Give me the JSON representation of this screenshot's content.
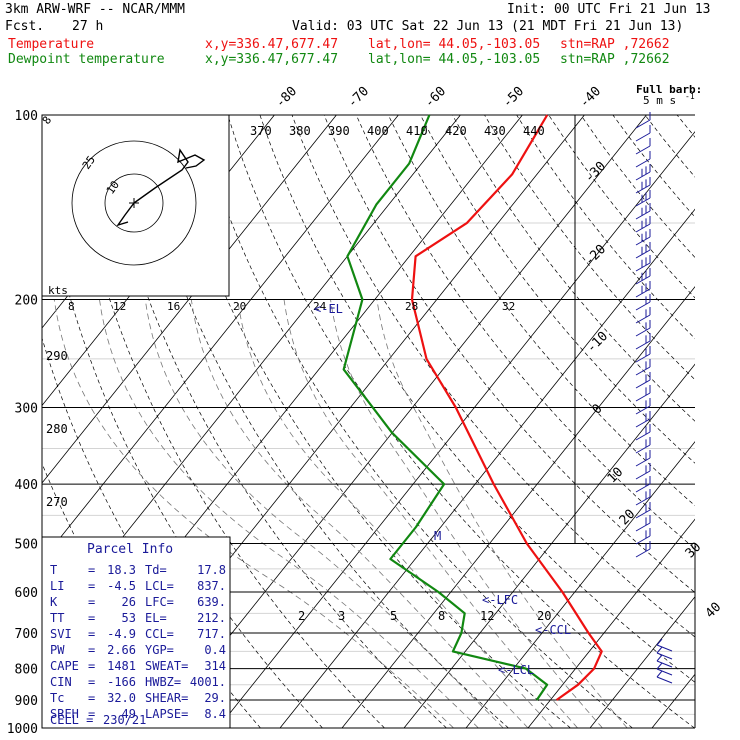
{
  "header": {
    "model": "3km ARW-WRF -- NCAR/MMM",
    "init": "Init: 00 UTC Fri 21 Jun 13",
    "fcst_label": "Fcst.",
    "fcst_value": "27 h",
    "valid": "Valid: 03 UTC Sat 22 Jun 13 (21 MDT Fri 21 Jun 13)",
    "temp_name": "Temperature",
    "dew_name": "Dewpoint temperature",
    "xy": "x,y=336.47,677.47",
    "latlon": "lat,lon= 44.05,-103.05",
    "stn": "stn=RAP ,72662"
  },
  "colors": {
    "temperature": "#ee1111",
    "dewpoint": "#118811",
    "text_blue": "#1a1a99",
    "grid": "#000000"
  },
  "barb_key": {
    "title": "Full barb:",
    "value": "5 m s",
    "exponent": "-1"
  },
  "chart_data": {
    "type": "line",
    "title": "",
    "xlabel": "",
    "ylabel": "",
    "pressure_ticks": [
      "100",
      "200",
      "300",
      "400",
      "500",
      "600",
      "700",
      "800",
      "900",
      "1000"
    ],
    "isotherm_labels_top": [
      "-80",
      "-70",
      "-60",
      "-50",
      "-40"
    ],
    "isotherm_labels_right": [
      "-30",
      "-20",
      "-10",
      "0",
      "10",
      "20",
      "30",
      "40"
    ],
    "theta_labels": [
      "370",
      "380",
      "390",
      "400",
      "410",
      "420",
      "430",
      "440"
    ],
    "theta_e_labels": [
      "290",
      "280",
      "270"
    ],
    "mixing_ratio_labels": [
      "2",
      "3",
      "5",
      "8",
      "12",
      "20"
    ],
    "hodograph": {
      "rings": [
        "10",
        "25"
      ],
      "axis_ticks": [
        "8",
        "12",
        "16",
        "20",
        "24",
        "28",
        "32"
      ],
      "unit": "kts"
    },
    "markers": [
      "EL",
      "M",
      "LFC",
      "CCL",
      "LCL"
    ],
    "temperature_profile": [
      {
        "p": 900,
        "t": 21
      },
      {
        "p": 850,
        "t": 22.5
      },
      {
        "p": 800,
        "t": 23
      },
      {
        "p": 750,
        "t": 22
      },
      {
        "p": 700,
        "t": 17.5
      },
      {
        "p": 600,
        "t": 8
      },
      {
        "p": 500,
        "t": -4
      },
      {
        "p": 400,
        "t": -17
      },
      {
        "p": 300,
        "t": -33
      },
      {
        "p": 250,
        "t": -44
      },
      {
        "p": 200,
        "t": -54
      },
      {
        "p": 170,
        "t": -59
      },
      {
        "p": 150,
        "t": -55
      },
      {
        "p": 125,
        "t": -54
      },
      {
        "p": 100,
        "t": -56
      }
    ],
    "dewpoint_profile": [
      {
        "p": 900,
        "t": 17.8
      },
      {
        "p": 850,
        "t": 17.5
      },
      {
        "p": 800,
        "t": 12
      },
      {
        "p": 750,
        "t": -2
      },
      {
        "p": 700,
        "t": -3
      },
      {
        "p": 650,
        "t": -5
      },
      {
        "p": 600,
        "t": -12
      },
      {
        "p": 530,
        "t": -24
      },
      {
        "p": 470,
        "t": -24
      },
      {
        "p": 400,
        "t": -25
      },
      {
        "p": 330,
        "t": -40
      },
      {
        "p": 260,
        "t": -56
      },
      {
        "p": 200,
        "t": -62
      },
      {
        "p": 170,
        "t": -70
      },
      {
        "p": 140,
        "t": -72
      },
      {
        "p": 120,
        "t": -72
      },
      {
        "p": 100,
        "t": -75
      }
    ]
  },
  "parcel_info": {
    "title": "Parcel Info",
    "rows": [
      {
        "a": "T",
        "av": "18.3",
        "b": "Td",
        "bv": "17.8"
      },
      {
        "a": "LI",
        "av": "-4.5",
        "b": "LCL",
        "bv": "837."
      },
      {
        "a": "K",
        "av": "26",
        "b": "LFC",
        "bv": "639."
      },
      {
        "a": "TT",
        "av": "53",
        "b": "EL",
        "bv": "212."
      },
      {
        "a": "SVI",
        "av": "-4.9",
        "b": "CCL",
        "bv": "717."
      },
      {
        "a": "PW",
        "av": "2.66",
        "b": "YGP",
        "bv": "0.4"
      },
      {
        "a": "CAPE",
        "av": "1481",
        "b": "SWEAT",
        "bv": "314"
      },
      {
        "a": "CIN",
        "av": "-166",
        "b": "HWBZ",
        "bv": "4001."
      },
      {
        "a": "Tc",
        "av": "32.0",
        "b": "SHEAR",
        "bv": "29."
      },
      {
        "a": "SREH",
        "av": "49",
        "b": "LAPSE",
        "bv": "8.4"
      }
    ],
    "cell_label": "CELL =",
    "cell_value": "230/21"
  }
}
